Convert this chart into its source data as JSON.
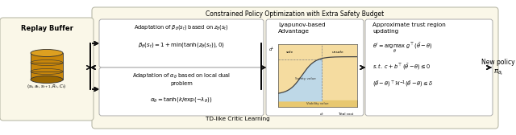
{
  "title_main": "Constrained Policy Optimization with Extra Safety Budget",
  "title_bottom": "TD-like Critic Learning",
  "replay_label": "Replay Buffer",
  "replay_sub": "$(s_t, a_t, s_{t+1}, R_t, C_t)$",
  "box1_line1": "Adaptation of $\\beta_\\theta(s_t)$ based on $z_\\theta(s_t)$",
  "box1_formula": "$\\beta_\\theta(s_t) = 1 + \\min(\\tanh(z_\\theta(s_t)), 0)$",
  "box2_line1": "Adaptation of $\\alpha_\\theta$ based on local dual",
  "box2_line2": "problem",
  "box2_formula": "$\\alpha_\\theta = \\tanh(k/\\exp(-\\lambda_\\theta))$",
  "lyapunov_title": "Lyapunov-based\nAdvantage",
  "approx_title": "Approximate trust region\nupdating",
  "approx_eq1": "$\\theta' = \\underset{\\theta}{\\mathrm{argmax}}\\; g^\\top(\\bar{\\theta} - \\theta)$",
  "approx_eq2": "$s.t.\\; c + b^\\top(\\bar{\\theta} - \\theta) \\leq 0$",
  "approx_eq3": "$(\\bar{\\theta} - \\theta)^\\top \\mathcal{H}^{-1}(\\bar{\\theta} - \\theta) \\leq \\delta$",
  "new_policy1": "New policy",
  "new_policy2": "$\\pi_{\\theta_t}$",
  "outer_fill": "#FAF7E8",
  "outer_edge": "#BBBBAA",
  "inner_fill": "#FFFFFF",
  "inner_edge": "#AAAAAA",
  "replay_fill": "#FAF7E8",
  "newpol_fill": "#FAF7E8",
  "drum_body": "#C8860A",
  "drum_top": "#DDA020",
  "drum_dark": "#996600",
  "plot_bg": "#F5DCA0",
  "plot_safe": "#B8D8F0",
  "plot_curve": "#444444",
  "arrow_color": "#111111"
}
